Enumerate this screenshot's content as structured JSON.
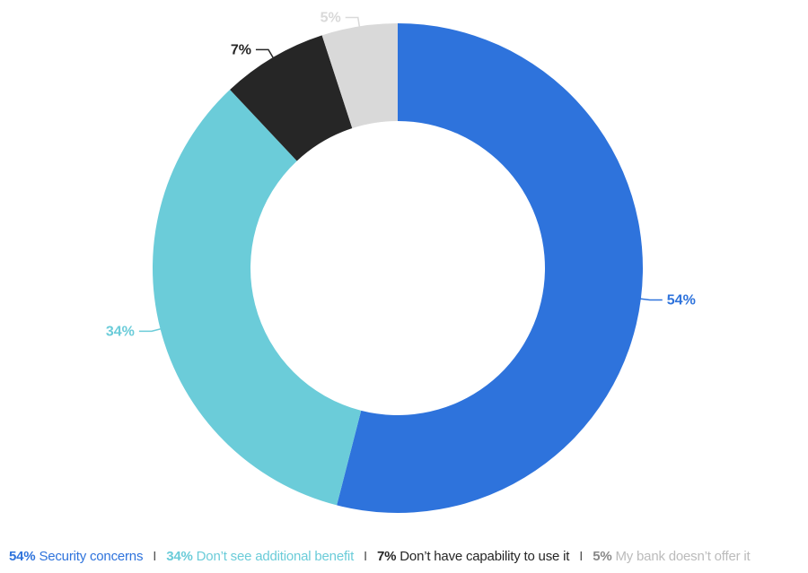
{
  "chart_data": {
    "type": "donut",
    "categories": [
      "Security concerns",
      "Don’t see additional benefit",
      "Don’t have capability to use it",
      "My bank doesn’t offer it"
    ],
    "values": [
      54,
      34,
      7,
      5
    ],
    "value_labels": [
      "54%",
      "34%",
      "7%",
      "5%"
    ],
    "colors": [
      "#2E73DC",
      "#6BCCD9",
      "#262626",
      "#D9D9D9"
    ],
    "legend_placement": "bottom",
    "legend_separator": "I"
  }
}
